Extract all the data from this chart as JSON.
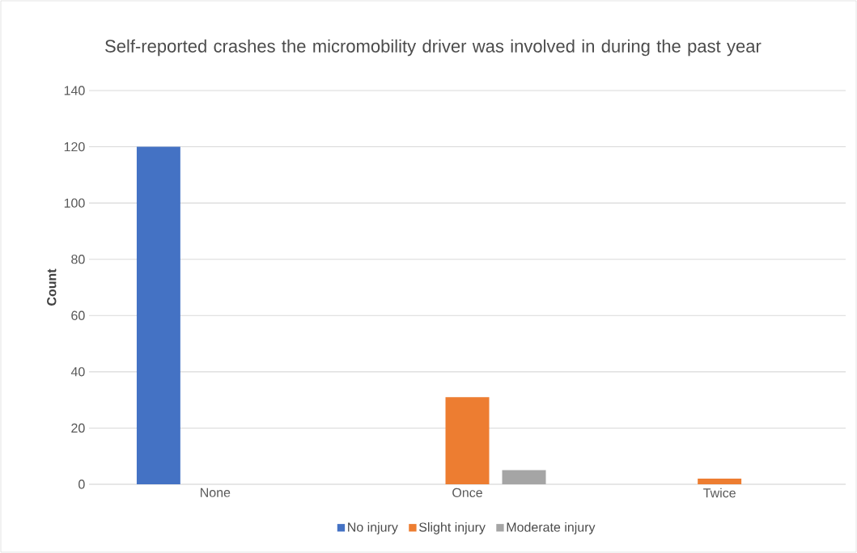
{
  "chart_data": {
    "type": "bar",
    "title": "Self-reported crashes the micromobility driver was involved in during the past year",
    "ylabel": "Count",
    "categories": [
      "None",
      "Once",
      "Twice"
    ],
    "series": [
      {
        "name": "No injury",
        "color": "#4472c4",
        "values": [
          120,
          0,
          0
        ]
      },
      {
        "name": "Slight injury",
        "color": "#ed7d31",
        "values": [
          0,
          31,
          2
        ]
      },
      {
        "name": "Moderate injury",
        "color": "#a5a5a5",
        "values": [
          0,
          5,
          0
        ]
      }
    ],
    "ylim": [
      0,
      140
    ],
    "yticks": [
      0,
      20,
      40,
      60,
      80,
      100,
      120,
      140
    ],
    "grid": "y",
    "legend": "bottom"
  }
}
